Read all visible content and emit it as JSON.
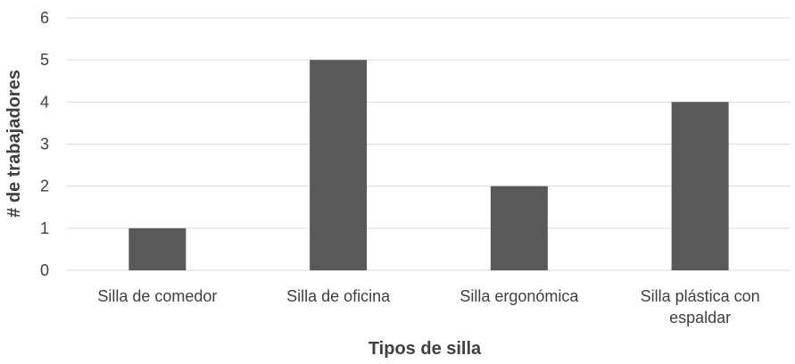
{
  "chart_data": {
    "type": "bar",
    "title": "",
    "categories": [
      "Silla de comedor",
      "Silla de oficina",
      "Silla ergonómica",
      "Silla plástica con espaldar"
    ],
    "category_label_lines": [
      [
        "Silla de comedor"
      ],
      [
        "Silla de oficina"
      ],
      [
        "Silla ergonómica"
      ],
      [
        "Silla plástica con",
        "espaldar"
      ]
    ],
    "values": [
      1,
      5,
      2,
      4
    ],
    "xlabel": "Tipos de silla",
    "ylabel": "# de trabajadores",
    "ylim": [
      0,
      6
    ],
    "yticks": [
      "0",
      "1",
      "2",
      "3",
      "4",
      "5",
      "6"
    ],
    "grid": true,
    "legend": "none",
    "colors": {
      "bar": "#595959",
      "grid": "#d9d9d9",
      "axis": "#d9d9d9",
      "text": "#404040"
    }
  }
}
